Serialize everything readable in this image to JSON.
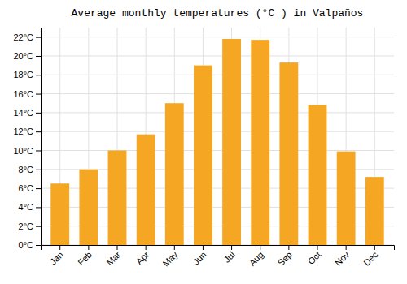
{
  "chart_data": {
    "type": "bar",
    "title": "Average monthly temperatures (°C ) in Valpaños",
    "categories": [
      "Jan",
      "Feb",
      "Mar",
      "Apr",
      "May",
      "Jun",
      "Jul",
      "Aug",
      "Sep",
      "Oct",
      "Nov",
      "Dec"
    ],
    "values": [
      6.5,
      8.0,
      10.0,
      11.7,
      15.0,
      19.0,
      21.8,
      21.7,
      19.3,
      14.8,
      9.9,
      7.2
    ],
    "color": "#F5A623",
    "ylim": [
      0,
      23
    ],
    "yticks": [
      {
        "value": 0,
        "label": "0°C"
      },
      {
        "value": 2,
        "label": "2°C"
      },
      {
        "value": 4,
        "label": "4°C"
      },
      {
        "value": 6,
        "label": "6°C"
      },
      {
        "value": 8,
        "label": "8°C"
      },
      {
        "value": 10,
        "label": "10°C"
      },
      {
        "value": 12,
        "label": "12°C"
      },
      {
        "value": 14,
        "label": "14°C"
      },
      {
        "value": 16,
        "label": "16°C"
      },
      {
        "value": 18,
        "label": "18°C"
      },
      {
        "value": 20,
        "label": "20°C"
      },
      {
        "value": 22,
        "label": "22°C"
      }
    ],
    "grid": true
  }
}
